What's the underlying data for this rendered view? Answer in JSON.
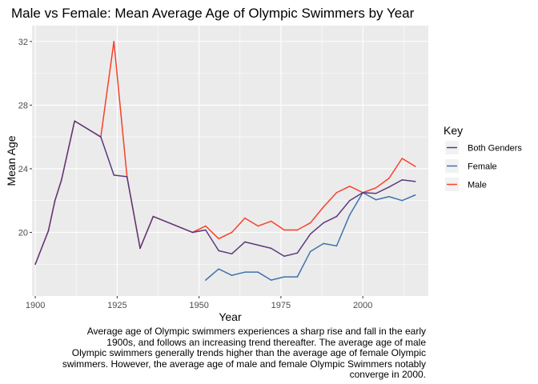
{
  "chart_data": {
    "type": "line",
    "title": "Male vs Female: Mean Average Age of Olympic Swimmers by Year",
    "xlabel": "Year",
    "ylabel": "Mean Age",
    "xlim": [
      1899,
      2020
    ],
    "ylim": [
      16.0,
      33.0
    ],
    "xticks": [
      1900,
      1925,
      1950,
      1975,
      2000
    ],
    "yticks": [
      20,
      24,
      28,
      32
    ],
    "grid": true,
    "legend": {
      "title": "Key",
      "position": "right"
    },
    "colors": {
      "panel_bg": "#ebebeb",
      "grid": "#ffffff"
    },
    "series": [
      {
        "name": "Male",
        "color": "#f8402a",
        "x": [
          1900,
          1904,
          1906,
          1908,
          1912,
          1920,
          1924,
          1928,
          1932,
          1936,
          1948,
          1952,
          1956,
          1960,
          1964,
          1968,
          1972,
          1976,
          1980,
          1984,
          1988,
          1992,
          1996,
          2000,
          2004,
          2008,
          2012,
          2016
        ],
        "y": [
          18.0,
          20.1,
          22.0,
          23.3,
          27.0,
          26.0,
          32.0,
          23.5,
          19.0,
          21.0,
          20.0,
          20.4,
          19.6,
          20.0,
          20.9,
          20.4,
          20.7,
          20.15,
          20.15,
          20.6,
          21.6,
          22.5,
          22.9,
          22.5,
          22.8,
          23.4,
          24.65,
          24.15
        ]
      },
      {
        "name": "Female",
        "color": "#3f73ad",
        "x": [
          1952,
          1956,
          1960,
          1964,
          1968,
          1972,
          1976,
          1980,
          1984,
          1988,
          1992,
          1996,
          2000,
          2004,
          2008,
          2012,
          2016
        ],
        "y": [
          17.0,
          17.7,
          17.3,
          17.5,
          17.5,
          17.0,
          17.2,
          17.2,
          18.8,
          19.3,
          19.15,
          21.1,
          22.5,
          22.05,
          22.25,
          22.0,
          22.35
        ]
      },
      {
        "name": "Both Genders",
        "color": "#5a3a7c",
        "x": [
          1900,
          1904,
          1906,
          1908,
          1912,
          1920,
          1924,
          1928,
          1932,
          1936,
          1948,
          1952,
          1956,
          1960,
          1964,
          1968,
          1972,
          1976,
          1980,
          1984,
          1988,
          1992,
          1996,
          2000,
          2004,
          2008,
          2012,
          2016
        ],
        "y": [
          18.0,
          20.1,
          22.0,
          23.3,
          27.0,
          26.0,
          23.6,
          23.5,
          19.0,
          21.0,
          20.0,
          20.15,
          18.85,
          18.65,
          19.4,
          19.2,
          19.0,
          18.5,
          18.7,
          19.9,
          20.6,
          21.0,
          22.0,
          22.5,
          22.45,
          22.85,
          23.3,
          23.2
        ]
      }
    ],
    "legend_order": [
      "Both Genders",
      "Female",
      "Male"
    ]
  },
  "caption": [
    "Average age of Olympic swimmers experiences a sharp rise and fall in the early",
    "1900s, and follows an increasing trend thereafter. The average age of male",
    "Olympic swimmers generally trends higher than the average age of female Olympic",
    "swimmers. However, the average age of male and female Olympic Swimmers notably",
    "converge in 2000."
  ]
}
